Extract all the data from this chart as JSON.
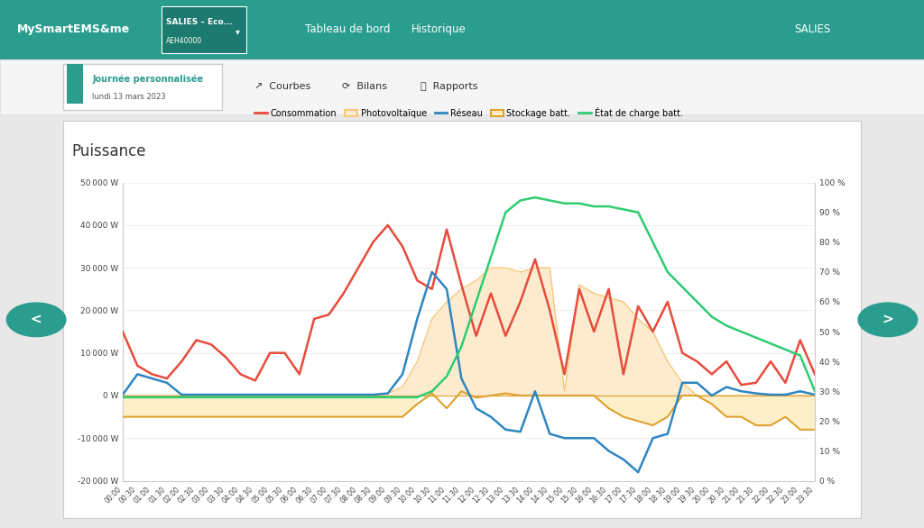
{
  "title": "Puissance",
  "bg_color": "#e8e8e8",
  "chart_bg": "#ffffff",
  "navbar_color": "#2a9d8f",
  "navbar_text": "MySmartEMS&me",
  "ylim_left": [
    -20000,
    50000
  ],
  "ylim_right": [
    0,
    100
  ],
  "ytick_labels_left": [
    "-20 000 W",
    "-10 000 W",
    "0 W",
    "10 000 W",
    "20 000 W",
    "30 000 W",
    "40 000 W",
    "50 000 W"
  ],
  "ytick_vals_left": [
    -20000,
    -10000,
    0,
    10000,
    20000,
    30000,
    40000,
    50000
  ],
  "ytick_labels_right": [
    "0 %",
    "10 %",
    "20 %",
    "30 %",
    "40 %",
    "50 %",
    "60 %",
    "70 %",
    "80 %",
    "90 %",
    "100 %"
  ],
  "ytick_vals_right": [
    0,
    10,
    20,
    30,
    40,
    50,
    60,
    70,
    80,
    90,
    100
  ],
  "colors": {
    "consommation": "#e74c3c",
    "photovoltaique_line": "#f5c87a",
    "photovoltaique_fill": "#fdebd0",
    "reseau": "#2e86c1",
    "stockage_line": "#e0a030",
    "stockage_fill": "#fdeec0",
    "etat_charge": "#2ecc71",
    "zero_line": "#e0a030"
  },
  "conso": [
    15000,
    7000,
    5000,
    4000,
    8000,
    13000,
    12000,
    9000,
    5000,
    3500,
    10000,
    10000,
    5000,
    18000,
    19000,
    24000,
    30000,
    36000,
    40000,
    35000,
    27000,
    25000,
    39000,
    26000,
    14000,
    24000,
    14000,
    22000,
    32000,
    20000,
    5000,
    25000,
    15000,
    25000,
    5000,
    21000,
    15000,
    22000,
    10000,
    8000,
    5000,
    8000,
    2500,
    3000,
    8000,
    3000,
    13000,
    5000
  ],
  "pv": [
    0,
    0,
    0,
    0,
    0,
    0,
    0,
    0,
    0,
    0,
    0,
    0,
    0,
    0,
    0,
    0,
    0,
    0,
    500,
    2000,
    8000,
    18000,
    22000,
    25000,
    27000,
    30000,
    30000,
    29000,
    30000,
    30000,
    1000,
    26000,
    24000,
    23000,
    22000,
    18000,
    15000,
    8000,
    3000,
    0,
    0,
    0,
    0,
    0,
    0,
    0,
    0,
    0
  ],
  "reseau": [
    200,
    5000,
    4000,
    3000,
    200,
    200,
    200,
    200,
    200,
    200,
    200,
    200,
    200,
    200,
    200,
    200,
    200,
    200,
    500,
    5000,
    18000,
    29000,
    25000,
    4000,
    -3000,
    -5000,
    -8000,
    -8500,
    1000,
    -9000,
    -10000,
    -10000,
    -10000,
    -13000,
    -15000,
    -18000,
    -10000,
    -9000,
    3000,
    3000,
    0,
    2000,
    1000,
    500,
    200,
    200,
    1000,
    200
  ],
  "stockage": [
    -5000,
    -5000,
    -5000,
    -5000,
    -5000,
    -5000,
    -5000,
    -5000,
    -5000,
    -5000,
    -5000,
    -5000,
    -5000,
    -5000,
    -5000,
    -5000,
    -5000,
    -5000,
    -5000,
    -5000,
    -2000,
    500,
    -3000,
    1000,
    -500,
    0,
    500,
    0,
    0,
    0,
    0,
    0,
    0,
    -3000,
    -5000,
    -6000,
    -7000,
    -5000,
    0,
    0,
    -2000,
    -5000,
    -5000,
    -7000,
    -7000,
    -5000,
    -8000,
    -8000
  ],
  "etat": [
    28,
    28,
    28,
    28,
    28,
    28,
    28,
    28,
    28,
    28,
    28,
    28,
    28,
    28,
    28,
    28,
    28,
    28,
    28,
    28,
    28,
    30,
    35,
    45,
    60,
    75,
    90,
    94,
    95,
    94,
    93,
    93,
    92,
    92,
    91,
    90,
    80,
    70,
    65,
    60,
    55,
    52,
    50,
    48,
    46,
    44,
    42,
    30
  ]
}
